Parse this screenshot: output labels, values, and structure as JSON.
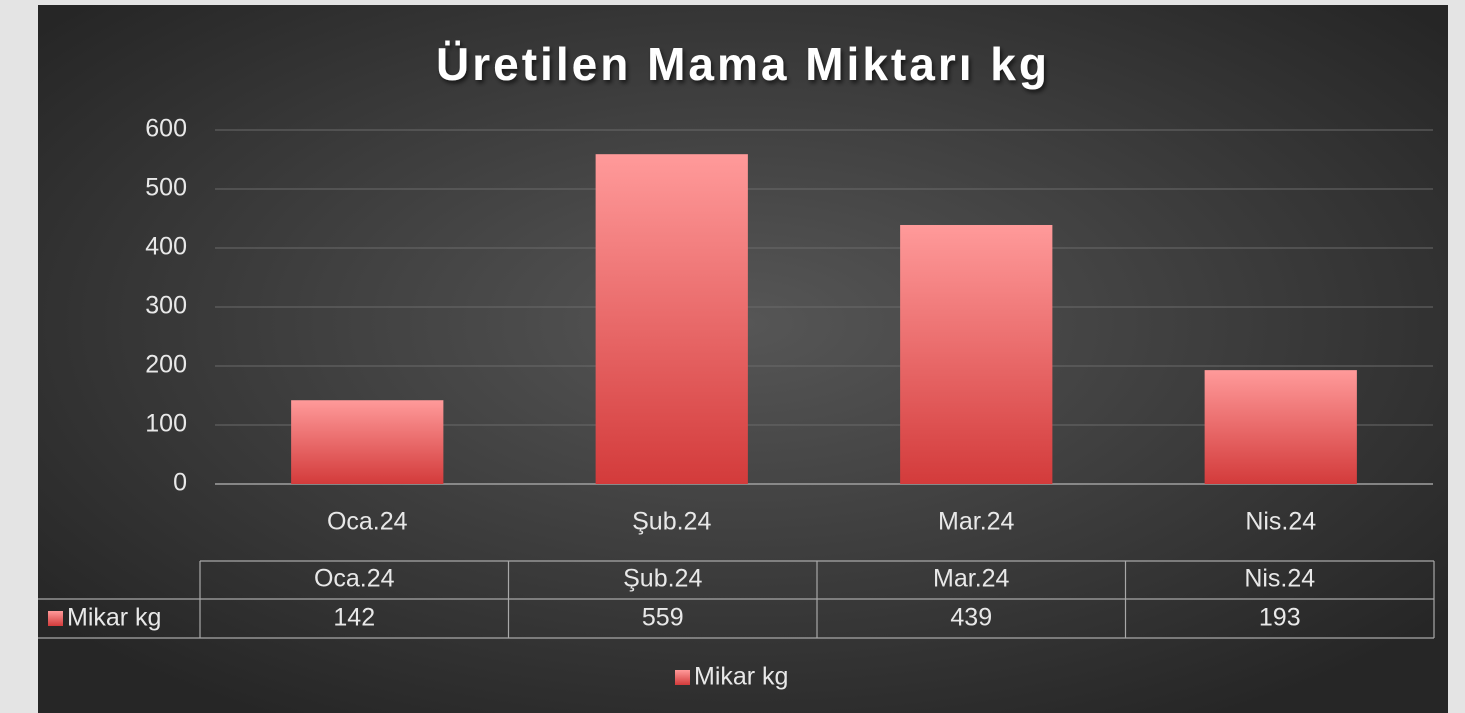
{
  "chart_data": {
    "type": "bar",
    "title": "Üretilen Mama Miktarı kg",
    "categories": [
      "Oca.24",
      "Şub.24",
      "Mar.24",
      "Nis.24"
    ],
    "series": [
      {
        "name": "Mikar kg",
        "color": "#d33b3b",
        "values": [
          142,
          559,
          439,
          193
        ]
      }
    ],
    "ylim": [
      0,
      600
    ],
    "yticks": [
      0,
      100,
      200,
      300,
      400,
      500,
      600
    ],
    "grid": true,
    "legend": "bottom"
  }
}
